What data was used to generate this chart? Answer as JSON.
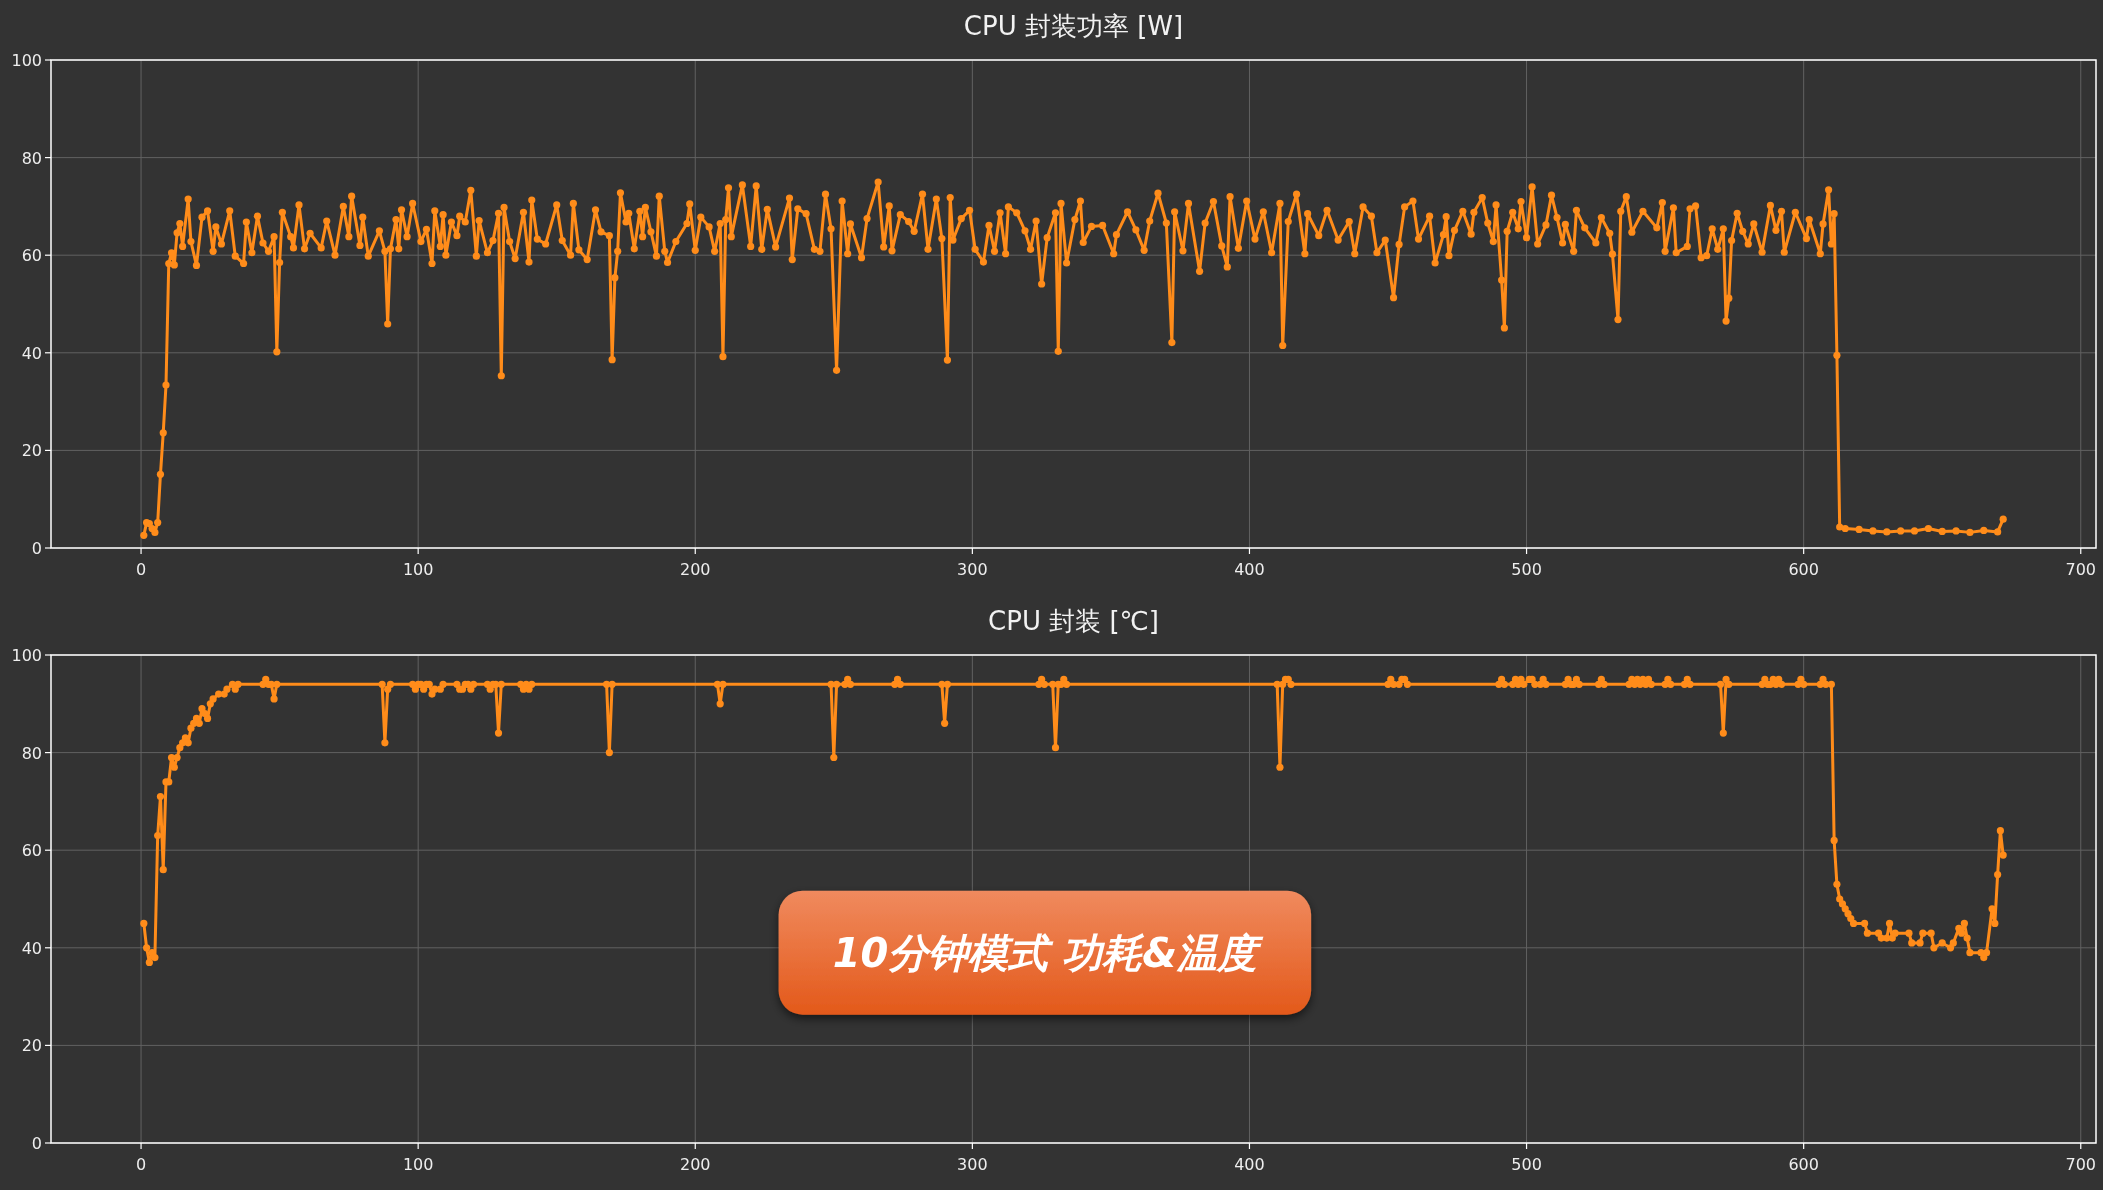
{
  "chart_data": [
    {
      "type": "line",
      "title": "CPU 封装功率 [W]",
      "x": [
        1,
        2,
        3,
        4,
        5,
        6,
        7,
        8,
        9,
        10,
        11,
        12,
        13,
        14,
        15,
        17,
        18,
        20,
        22,
        24,
        26,
        27,
        29,
        32,
        34,
        37,
        38,
        40,
        42,
        44,
        46,
        48,
        49,
        50,
        51,
        54,
        55,
        57,
        59,
        61,
        65,
        67,
        70,
        73,
        75,
        76,
        79,
        80,
        82,
        86,
        88,
        89,
        90,
        92,
        93,
        94,
        96,
        98,
        101,
        103,
        105,
        106,
        108,
        109,
        110,
        112,
        114,
        115,
        117,
        119,
        121,
        122,
        125,
        127,
        129,
        130,
        131,
        133,
        135,
        138,
        140,
        141,
        143,
        146,
        150,
        152,
        155,
        156,
        158,
        161,
        164,
        166,
        169,
        170,
        171,
        172,
        173,
        175,
        176,
        178,
        180,
        181,
        182,
        184,
        186,
        187,
        189,
        190,
        193,
        197,
        198,
        200,
        202,
        205,
        207,
        209,
        210,
        211,
        212,
        213,
        217,
        220,
        222,
        224,
        226,
        229,
        234,
        235,
        237,
        240,
        243,
        245,
        247,
        249,
        251,
        253,
        255,
        256,
        260,
        262,
        266,
        268,
        270,
        271,
        274,
        277,
        279,
        282,
        284,
        287,
        289,
        291,
        292,
        293,
        296,
        299,
        301,
        304,
        306,
        308,
        310,
        312,
        313,
        316,
        319,
        321,
        323,
        325,
        327,
        330,
        331,
        332,
        334,
        337,
        339,
        340,
        343,
        347,
        351,
        352,
        356,
        359,
        362,
        364,
        367,
        370,
        372,
        373,
        376,
        378,
        382,
        384,
        387,
        390,
        392,
        393,
        396,
        399,
        402,
        405,
        408,
        411,
        412,
        414,
        417,
        420,
        421,
        425,
        428,
        432,
        436,
        438,
        441,
        444,
        446,
        449,
        452,
        454,
        456,
        459,
        461,
        465,
        467,
        470,
        471,
        472,
        474,
        477,
        480,
        481,
        484,
        486,
        488,
        489,
        491,
        492,
        493,
        495,
        497,
        498,
        500,
        502,
        504,
        507,
        509,
        511,
        513,
        514,
        517,
        518,
        521,
        525,
        527,
        530,
        531,
        533,
        534,
        536,
        538,
        542,
        547,
        549,
        550,
        553,
        554,
        558,
        559,
        561,
        563,
        565,
        567,
        569,
        571,
        572,
        573,
        574,
        576,
        578,
        580,
        582,
        585,
        588,
        590,
        592,
        593,
        597,
        601,
        602,
        606,
        607,
        609,
        610,
        611,
        612,
        613,
        615,
        620,
        625,
        630,
        635,
        640,
        645,
        650,
        655,
        660,
        665,
        670,
        672
      ],
      "series": [
        {
          "color": "#ff8c1a",
          "values": [
            2.6,
            5.2,
            5,
            4,
            3.2,
            5.2,
            15.1,
            23.6,
            33.4,
            58.3,
            60.5,
            58,
            64.6,
            66.5,
            61.8,
            71.5,
            62.8,
            57.9,
            67.8,
            69.1,
            60.8,
            65.8,
            62.3,
            69.1,
            59.8,
            58.3,
            66.8,
            60.5,
            68,
            62.5,
            60.8,
            63.8,
            40.2,
            58.5,
            68.8,
            63.8,
            61.5,
            70.3,
            61.3,
            64.5,
            61.5,
            67,
            60,
            70,
            63.8,
            72.1,
            62,
            67.8,
            59.8,
            65,
            60.8,
            45.9,
            61.3,
            67.3,
            61.3,
            69.3,
            63.8,
            70.6,
            62.8,
            65.3,
            58.3,
            69.1,
            61.8,
            68.3,
            60,
            66.8,
            64,
            68,
            66.8,
            73.3,
            59.8,
            67.1,
            60.5,
            63,
            68.6,
            35.3,
            69.8,
            62.8,
            59.3,
            68.8,
            58.6,
            71.3,
            63.3,
            62.3,
            70.3,
            63,
            60,
            70.6,
            61.1,
            59.1,
            69.3,
            64.8,
            64,
            38.6,
            55.4,
            60.8,
            72.8,
            66.8,
            68.6,
            61.3,
            69,
            63.8,
            69.8,
            64.8,
            59.8,
            72.1,
            60.8,
            58.5,
            62.8,
            66.5,
            70.5,
            61,
            67.8,
            65.8,
            60.8,
            66.5,
            39.2,
            67.3,
            73.8,
            63.8,
            74.4,
            61.8,
            74.2,
            61.2,
            69.4,
            61.7,
            71.7,
            59.1,
            69.5,
            68.5,
            61.2,
            60.8,
            72.5,
            65.4,
            36.4,
            71.1,
            60.3,
            66.4,
            59.5,
            67.5,
            75,
            61.7,
            70.1,
            60.9,
            68.3,
            66.9,
            64.9,
            72.5,
            61.2,
            71.5,
            63.4,
            38.5,
            71.8,
            63.1,
            67.5,
            69.2,
            61.2,
            58.6,
            66.1,
            60.8,
            68.7,
            60.3,
            69.9,
            68.7,
            65,
            61.2,
            67,
            54.1,
            63.6,
            68.7,
            40.3,
            70.6,
            58.4,
            67.3,
            71.1,
            62.6,
            65.9,
            66.1,
            60.3,
            64.2,
            68.9,
            65.2,
            61,
            67,
            72.7,
            66.6,
            42.1,
            68.9,
            60.9,
            70.6,
            56.7,
            66.6,
            71,
            61.9,
            57.6,
            72,
            61.4,
            71.1,
            63.3,
            68.9,
            60.5,
            70.6,
            41.5,
            66.9,
            72.5,
            60.3,
            68.5,
            64,
            69.2,
            63.1,
            66.9,
            60.3,
            69.9,
            68,
            60.5,
            63.1,
            51.3,
            62.2,
            69.9,
            71.1,
            63.3,
            68,
            58.4,
            64.2,
            67.9,
            59.9,
            65.1,
            69,
            64.3,
            68.8,
            71.8,
            66.6,
            62.8,
            70.3,
            54.9,
            45.1,
            64.9,
            68.8,
            65.4,
            71,
            63.6,
            74,
            62.3,
            66.2,
            72.3,
            67.7,
            62.5,
            66.3,
            60.8,
            69.2,
            65.6,
            62.5,
            67.7,
            64.5,
            60.2,
            46.8,
            69,
            72,
            64.7,
            69,
            65.6,
            70.8,
            60.8,
            69.7,
            60.5,
            61.8,
            69.5,
            70.1,
            59.5,
            59.9,
            65.4,
            61.2,
            65.4,
            46.5,
            51.2,
            63,
            68.6,
            64.9,
            62.3,
            66.4,
            60.6,
            70.2,
            65.1,
            69,
            60.6,
            68.8,
            63.4,
            67.3,
            60.3,
            66.4,
            73.4,
            62.3,
            68.5,
            39.5,
            4.3,
            4,
            3.8,
            3.5,
            3.3,
            3.5,
            3.5,
            4,
            3.4,
            3.5,
            3.2,
            3.6,
            3.3,
            5.9
          ]
        }
      ],
      "xlim": [
        -32.5,
        705.5
      ],
      "ylim": [
        0,
        100
      ],
      "xticks": [
        0,
        100,
        200,
        300,
        400,
        500,
        600,
        700
      ],
      "yticks": [
        0,
        20,
        40,
        60,
        80,
        100
      ],
      "grid": true,
      "marker": "circle",
      "line_style": "solid"
    },
    {
      "type": "line",
      "title": "CPU 封装 [℃]",
      "x": [
        1,
        2,
        3,
        4,
        5,
        6,
        7,
        8,
        9,
        10,
        11,
        12,
        13,
        14,
        15,
        16,
        17,
        18,
        19,
        20,
        21,
        22,
        23,
        24,
        25,
        26,
        28,
        30,
        31,
        33,
        34,
        35,
        44,
        45,
        46,
        47,
        48,
        49,
        87,
        88,
        89,
        90,
        98,
        99,
        100,
        101,
        102,
        103,
        104,
        105,
        106,
        108,
        109,
        114,
        115,
        116,
        117,
        118,
        119,
        120,
        125,
        126,
        127,
        128,
        129,
        130,
        137,
        138,
        139,
        140,
        141,
        168,
        169,
        170,
        208,
        209,
        210,
        249,
        250,
        251,
        254,
        255,
        256,
        272,
        273,
        274,
        289,
        290,
        291,
        324,
        325,
        326,
        329,
        330,
        331,
        332,
        333,
        334,
        410,
        411,
        412,
        413,
        414,
        415,
        450,
        451,
        452,
        454,
        455,
        456,
        457,
        490,
        491,
        492,
        495,
        496,
        497,
        498,
        499,
        501,
        502,
        503,
        505,
        506,
        507,
        514,
        515,
        516,
        517,
        518,
        519,
        526,
        527,
        528,
        537,
        538,
        539,
        540,
        541,
        542,
        543,
        544,
        545,
        550,
        551,
        552,
        557,
        558,
        559,
        570,
        571,
        572,
        573,
        585,
        586,
        587,
        588,
        589,
        590,
        591,
        592,
        598,
        599,
        600,
        606,
        607,
        608,
        610,
        611,
        612,
        613,
        614,
        615,
        616,
        617,
        618,
        622,
        623,
        627,
        628,
        630,
        631,
        632,
        633,
        638,
        639,
        642,
        643,
        646,
        647,
        650,
        653,
        654,
        656,
        657,
        658,
        659,
        660,
        664,
        665,
        666,
        668,
        669,
        670,
        671,
        672
      ],
      "series": [
        {
          "color": "#ff8c1a",
          "values": [
            45,
            40,
            37,
            39,
            38,
            63,
            71,
            56,
            74,
            74,
            79,
            77,
            79,
            81,
            82,
            83,
            82,
            85,
            86,
            87,
            86,
            89,
            88,
            87,
            90,
            91,
            92,
            92,
            93,
            94,
            93,
            94,
            94,
            95,
            94,
            94,
            91,
            94,
            94,
            82,
            93,
            94,
            94,
            93,
            94,
            94,
            93,
            94,
            94,
            92,
            93,
            93,
            94,
            94,
            93,
            93,
            94,
            94,
            93,
            94,
            94,
            93,
            94,
            94,
            84,
            94,
            94,
            93,
            94,
            93,
            94,
            94,
            80,
            94,
            94,
            90,
            94,
            94,
            79,
            94,
            94,
            95,
            94,
            94,
            95,
            94,
            94,
            86,
            94,
            94,
            95,
            94,
            94,
            81,
            94,
            94,
            95,
            94,
            94,
            77,
            94,
            95,
            95,
            94,
            94,
            95,
            94,
            94,
            95,
            95,
            94,
            94,
            95,
            94,
            94,
            95,
            94,
            95,
            94,
            95,
            95,
            94,
            94,
            95,
            94,
            94,
            95,
            94,
            94,
            95,
            94,
            94,
            95,
            94,
            94,
            95,
            94,
            95,
            94,
            95,
            94,
            95,
            94,
            94,
            95,
            94,
            94,
            95,
            94,
            94,
            84,
            95,
            94,
            94,
            95,
            94,
            94,
            95,
            94,
            95,
            94,
            94,
            95,
            94,
            94,
            95,
            94,
            94,
            62,
            53,
            50,
            49,
            48,
            47,
            46,
            45,
            45,
            43,
            43,
            42,
            42,
            45,
            42,
            43,
            43,
            41,
            41,
            43,
            43,
            40,
            41,
            40,
            41,
            44,
            43,
            45,
            42,
            39,
            39,
            38,
            39,
            48,
            45,
            55,
            64,
            59
          ]
        }
      ],
      "xlim": [
        -32.5,
        705.5
      ],
      "ylim": [
        0,
        100
      ],
      "xticks": [
        0,
        100,
        200,
        300,
        400,
        500,
        600,
        700
      ],
      "yticks": [
        0,
        20,
        40,
        60,
        80,
        100
      ],
      "grid": true,
      "marker": "circle",
      "line_style": "solid",
      "annotations": [
        "10分钟模式 功耗&温度"
      ]
    }
  ]
}
